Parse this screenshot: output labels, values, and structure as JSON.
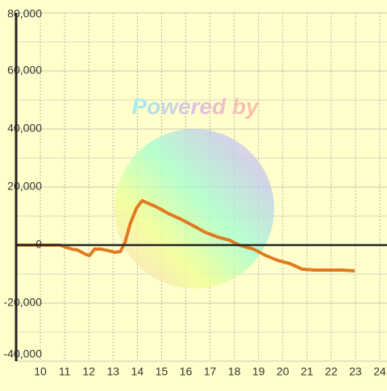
{
  "chart_data": {
    "type": "line",
    "watermark": "Powered by",
    "x": [
      9.0,
      10.8,
      11.3,
      11.53,
      11.9,
      12.03,
      12.23,
      12.5,
      12.8,
      13.07,
      13.3,
      13.5,
      13.7,
      13.97,
      14.2,
      14.5,
      14.8,
      15.3,
      15.8,
      16.3,
      16.8,
      17.3,
      17.8,
      18.2,
      18.8,
      19.3,
      19.8,
      20.3,
      20.8,
      21.3,
      22.47,
      22.97
    ],
    "series": [
      {
        "color": "#e07a20",
        "values": [
          0,
          0,
          -1400,
          -1700,
          -3300,
          -3600,
          -1400,
          -1400,
          -1900,
          -2500,
          -2200,
          1100,
          7200,
          12800,
          15300,
          14200,
          13100,
          10800,
          8900,
          6700,
          4400,
          2800,
          1700,
          0,
          -1400,
          -3600,
          -5300,
          -6400,
          -8300,
          -8600,
          -8600,
          -8900
        ]
      }
    ],
    "xlim": [
      9,
      24.3
    ],
    "xticks": [
      10,
      11,
      12,
      13,
      14,
      15,
      16,
      17,
      18,
      19,
      20,
      21,
      22,
      23,
      24
    ],
    "ylim": [
      -40000,
      80000
    ],
    "yticks": [
      {
        "value": -40000,
        "label": "-40,000"
      },
      {
        "value": -20000,
        "label": "-20,000"
      },
      0,
      {
        "value": 20000,
        "label": "20,000"
      },
      {
        "value": 40000,
        "label": "40,000"
      },
      {
        "value": 60000,
        "label": "60,000"
      },
      {
        "value": 80000,
        "label": "80,000"
      }
    ],
    "grid": true,
    "background": "#ffffcc"
  }
}
